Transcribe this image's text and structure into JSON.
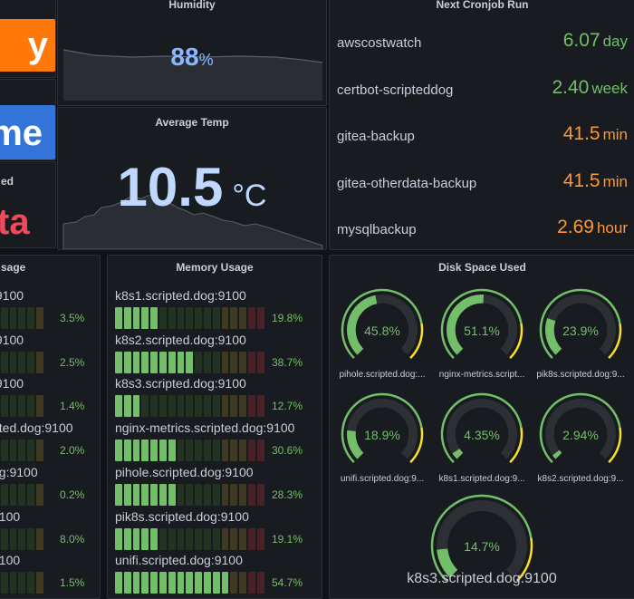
{
  "left_column": {
    "orange_stat": "y",
    "blue_stat": "me",
    "red_title": "ed",
    "red_stat": "ta"
  },
  "humidity": {
    "title": "Humidity",
    "value": "88",
    "unit": "%"
  },
  "temp": {
    "title": "Average Temp",
    "value": "10.5",
    "unit": "°C"
  },
  "cron": {
    "title": "Next Cronjob Run",
    "rows": [
      {
        "name": "awscostwatch",
        "value": "6.07",
        "unit": "day",
        "color": "#73bf69"
      },
      {
        "name": "certbot-scripteddog",
        "value": "2.40",
        "unit": "week",
        "color": "#73bf69"
      },
      {
        "name": "gitea-backup",
        "value": "41.5",
        "unit": "min",
        "color": "#ff9830"
      },
      {
        "name": "gitea-otherdata-backup",
        "value": "41.5",
        "unit": "min",
        "color": "#ff9830"
      },
      {
        "name": "mysqlbackup",
        "value": "2.69",
        "unit": "hour",
        "color": "#ff9830"
      }
    ]
  },
  "cpu": {
    "title": "sage",
    "rows": [
      {
        "label": ":9100",
        "pct": "3.5%",
        "level": 0.035
      },
      {
        "label": ":9100",
        "pct": "2.5%",
        "level": 0.025
      },
      {
        "label": ":9100",
        "pct": "1.4%",
        "level": 0.014
      },
      {
        "label": "pted.dog:9100",
        "pct": "2.0%",
        "level": 0.02
      },
      {
        "label": "og:9100",
        "pct": "0.2%",
        "level": 0.002
      },
      {
        "label": "9100",
        "pct": "8.0%",
        "level": 0.08
      },
      {
        "label": "9100",
        "pct": "1.5%",
        "level": 0.015
      }
    ]
  },
  "memory": {
    "title": "Memory Usage",
    "rows": [
      {
        "label": "k8s1.scripted.dog:9100",
        "pct": "19.8%",
        "level": 0.198
      },
      {
        "label": "k8s2.scripted.dog:9100",
        "pct": "38.7%",
        "level": 0.387
      },
      {
        "label": "k8s3.scripted.dog:9100",
        "pct": "12.7%",
        "level": 0.127
      },
      {
        "label": "nginx-metrics.scripted.dog:9100",
        "pct": "30.6%",
        "level": 0.306
      },
      {
        "label": "pihole.scripted.dog:9100",
        "pct": "28.3%",
        "level": 0.283
      },
      {
        "label": "pik8s.scripted.dog:9100",
        "pct": "19.1%",
        "level": 0.191
      },
      {
        "label": "unifi.scripted.dog:9100",
        "pct": "54.7%",
        "level": 0.547
      }
    ]
  },
  "disk": {
    "title": "Disk Space Used",
    "gauges": [
      {
        "value": "45.8%",
        "level": 0.458,
        "label": "pihole.scripted.dog:..."
      },
      {
        "value": "51.1%",
        "level": 0.511,
        "label": "nginx-metrics.script..."
      },
      {
        "value": "23.9%",
        "level": 0.239,
        "label": "pik8s.scripted.dog:9..."
      },
      {
        "value": "18.9%",
        "level": 0.189,
        "label": "unifi.scripted.dog:9..."
      },
      {
        "value": "4.35%",
        "level": 0.0435,
        "label": "k8s1.scripted.dog:9..."
      },
      {
        "value": "2.94%",
        "level": 0.0294,
        "label": "k8s2.scripted.dog:9..."
      },
      {
        "value": "14.7%",
        "level": 0.147,
        "label": "k8s3.scripted.dog:9100"
      }
    ]
  },
  "colors": {
    "green": "#73bf69",
    "orange": "#ff9830",
    "red": "#f2495c",
    "blue": "#3274d9",
    "dark_orange": "#ff780a",
    "yellow": "#fade2a",
    "humidity_text": "#8ab8ff",
    "temp_text": "#c0d8ff"
  }
}
